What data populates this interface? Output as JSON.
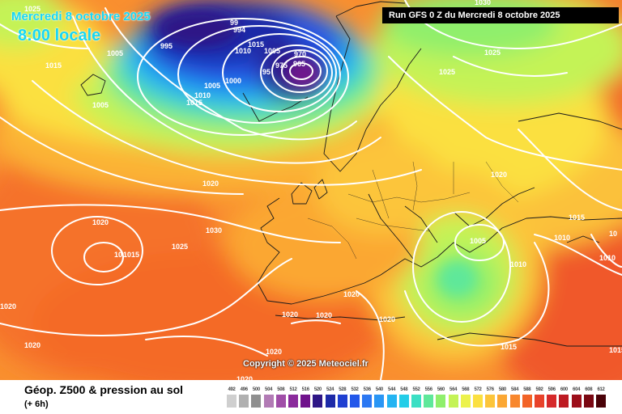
{
  "header": {
    "date_line": "Mercredi 8 octobre 2025",
    "time_line": "8:00 locale",
    "run_info": "Run GFS 0 Z du Mercredi 8 octobre 2025"
  },
  "copyright": "Copyright © 2025 Meteociel.fr",
  "footer": {
    "title": "Géop. Z500 & pression au sol",
    "subtitle": "(+ 6h)"
  },
  "legend": {
    "values": [
      "492",
      "496",
      "500",
      "504",
      "508",
      "512",
      "516",
      "520",
      "524",
      "528",
      "532",
      "536",
      "540",
      "544",
      "548",
      "552",
      "556",
      "560",
      "564",
      "568",
      "572",
      "576",
      "580",
      "584",
      "588",
      "592",
      "596",
      "600",
      "604",
      "608",
      "612"
    ],
    "colors": [
      "#cfcfcf",
      "#b0b0b0",
      "#8f8f8f",
      "#b27bb5",
      "#a04ea8",
      "#8b2a9c",
      "#70128c",
      "#2e1686",
      "#1d2aa8",
      "#1f3fd1",
      "#2257ea",
      "#2c78f2",
      "#2a96f5",
      "#24b4f2",
      "#23cde8",
      "#3bdfc4",
      "#5ee89a",
      "#8fef6c",
      "#c4f356",
      "#ecf24c",
      "#fbe041",
      "#fcc53a",
      "#fba733",
      "#f8872d",
      "#f26327",
      "#e8422a",
      "#d6292a",
      "#bd1a22",
      "#9c0e1a",
      "#7a0712",
      "#4a0208"
    ]
  },
  "isobar_labels": [
    {
      "text": "1025"
    },
    {
      "text": "1015"
    },
    {
      "text": "1005"
    },
    {
      "text": "1005"
    },
    {
      "text": "995"
    },
    {
      "text": "99"
    },
    {
      "text": "994"
    },
    {
      "text": "1015"
    },
    {
      "text": "1010"
    },
    {
      "text": "1005"
    },
    {
      "text": "970"
    },
    {
      "text": "965"
    },
    {
      "text": "975"
    },
    {
      "text": "95"
    },
    {
      "text": "1000"
    },
    {
      "text": "1005"
    },
    {
      "text": "1010"
    },
    {
      "text": "1015"
    },
    {
      "text": "1020"
    },
    {
      "text": "1020"
    },
    {
      "text": "1030"
    },
    {
      "text": "1025"
    },
    {
      "text": "1015"
    },
    {
      "text": "10"
    },
    {
      "text": "1020"
    },
    {
      "text": "1020"
    },
    {
      "text": "1020"
    },
    {
      "text": "1020"
    },
    {
      "text": "1020"
    },
    {
      "text": "1020"
    },
    {
      "text": "1020"
    },
    {
      "text": "1020"
    },
    {
      "text": "1005"
    },
    {
      "text": "1010"
    },
    {
      "text": "1010"
    },
    {
      "text": "1015"
    },
    {
      "text": "1010"
    },
    {
      "text": "10"
    },
    {
      "text": "1015"
    },
    {
      "text": "1015"
    },
    {
      "text": "1025"
    },
    {
      "text": "1025"
    },
    {
      "text": "1030"
    },
    {
      "text": "1020"
    }
  ]
}
